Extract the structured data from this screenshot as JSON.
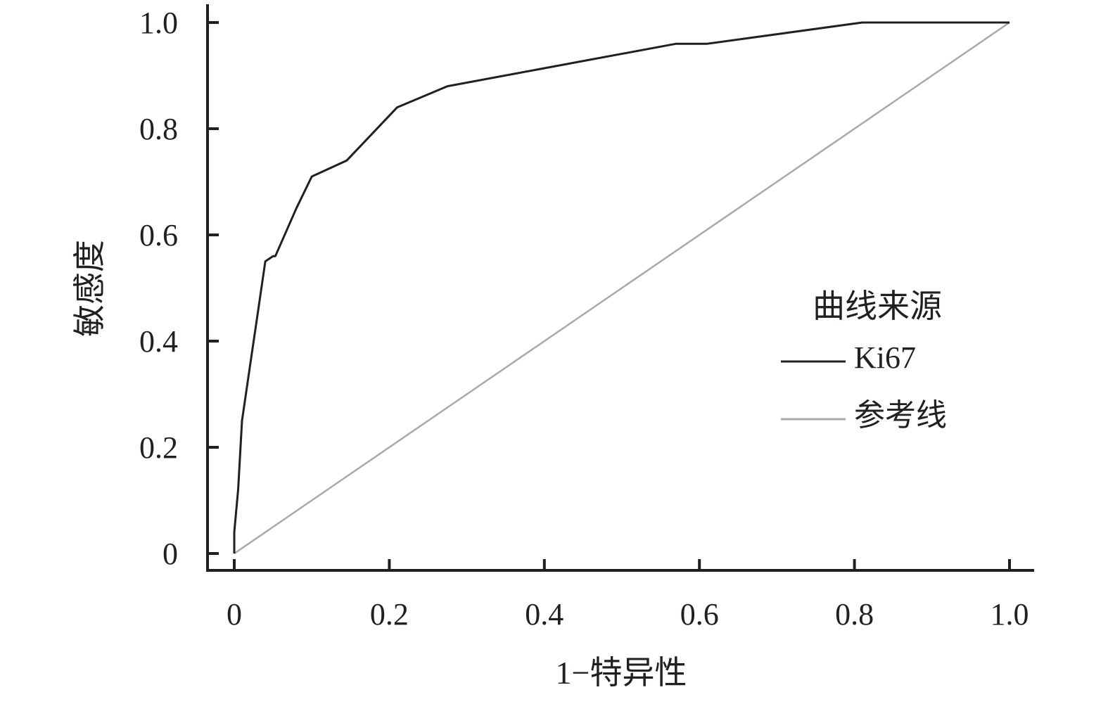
{
  "chart_data": {
    "type": "line",
    "title": "",
    "xlabel": "1−特异性",
    "ylabel": "敏感度",
    "xlim": [
      0,
      1.0
    ],
    "ylim": [
      0,
      1.0
    ],
    "x_ticks": [
      "0",
      "0.2",
      "0.4",
      "0.6",
      "0.8",
      "1.0"
    ],
    "y_ticks": [
      "0",
      "0.2",
      "0.4",
      "0.6",
      "0.8",
      "1.0"
    ],
    "grid": false,
    "legend": {
      "title": "曲线来源",
      "placement": "right",
      "entries": [
        {
          "label": "Ki67",
          "color": "#231f20"
        },
        {
          "label": "参考线",
          "color": "#a7a9ac"
        }
      ]
    },
    "series": [
      {
        "name": "Ki67",
        "color": "#231f20",
        "x": [
          0,
          0,
          0.005,
          0.01,
          0.02,
          0.03,
          0.04,
          0.05,
          0.053,
          0.08,
          0.1,
          0.145,
          0.21,
          0.275,
          0.57,
          0.61,
          0.81,
          1.0
        ],
        "y": [
          0,
          0.04,
          0.12,
          0.25,
          0.35,
          0.45,
          0.55,
          0.56,
          0.56,
          0.65,
          0.71,
          0.74,
          0.84,
          0.88,
          0.96,
          0.96,
          1.0,
          1.0
        ]
      },
      {
        "name": "参考线",
        "color": "#a7a9ac",
        "x": [
          0,
          1.0
        ],
        "y": [
          0,
          1.0
        ]
      }
    ]
  }
}
